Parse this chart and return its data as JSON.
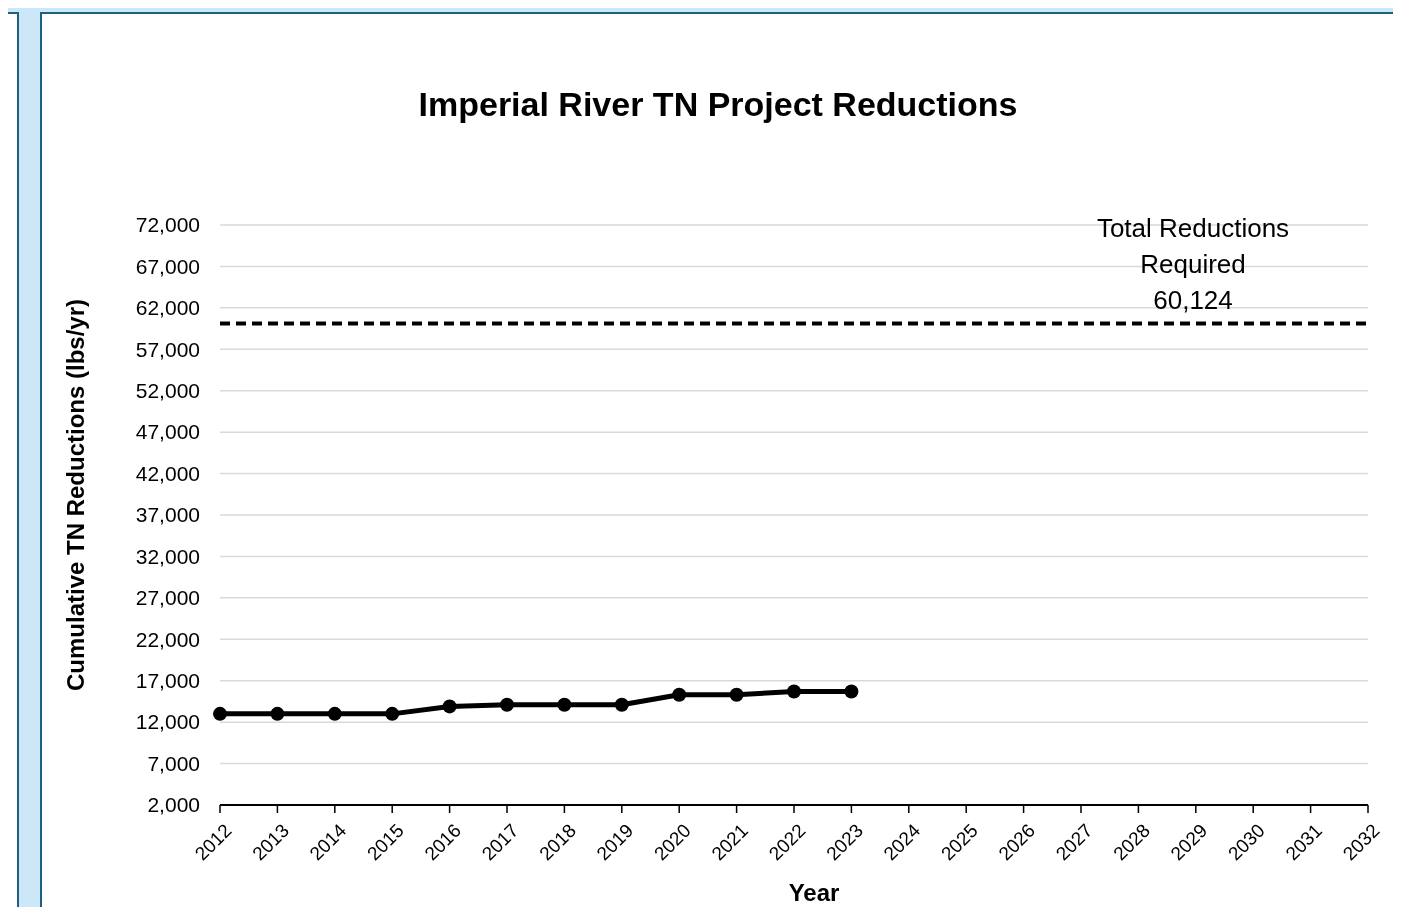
{
  "chart_data": {
    "type": "line",
    "title": "Imperial River TN Project Reductions",
    "xlabel": "Year",
    "ylabel": "Cumulative TN Reductions (lbs/yr)",
    "x": [
      2012,
      2013,
      2014,
      2015,
      2016,
      2017,
      2018,
      2019,
      2020,
      2021,
      2022,
      2023
    ],
    "series": [
      {
        "color": "#000000",
        "values": [
          13000,
          13000,
          13000,
          13000,
          13900,
          14100,
          14100,
          14100,
          15300,
          15300,
          15700,
          15700
        ]
      }
    ],
    "xlim": [
      2012,
      2032
    ],
    "xticks": [
      2012,
      2013,
      2014,
      2015,
      2016,
      2017,
      2018,
      2019,
      2020,
      2021,
      2022,
      2023,
      2024,
      2025,
      2026,
      2027,
      2028,
      2029,
      2030,
      2031,
      2032
    ],
    "ylim": [
      2000,
      72000
    ],
    "yticks": [
      {
        "value": 2000,
        "label": "2,000"
      },
      {
        "value": 7000,
        "label": "7,000"
      },
      {
        "value": 12000,
        "label": "12,000"
      },
      {
        "value": 17000,
        "label": "17,000"
      },
      {
        "value": 22000,
        "label": "22,000"
      },
      {
        "value": 27000,
        "label": "27,000"
      },
      {
        "value": 32000,
        "label": "32,000"
      },
      {
        "value": 37000,
        "label": "37,000"
      },
      {
        "value": 42000,
        "label": "42,000"
      },
      {
        "value": 47000,
        "label": "47,000"
      },
      {
        "value": 52000,
        "label": "52,000"
      },
      {
        "value": 57000,
        "label": "57,000"
      },
      {
        "value": 62000,
        "label": "62,000"
      },
      {
        "value": 67000,
        "label": "67,000"
      },
      {
        "value": 72000,
        "label": "72,000"
      }
    ],
    "ref_lines": [
      {
        "axis": "y",
        "value": 60124,
        "label": "Total Reductions\nRequired\n60,124",
        "color": "#000000",
        "line_style": "dashed"
      }
    ],
    "grid": "y",
    "marker": "circle",
    "line_style": "solid"
  }
}
